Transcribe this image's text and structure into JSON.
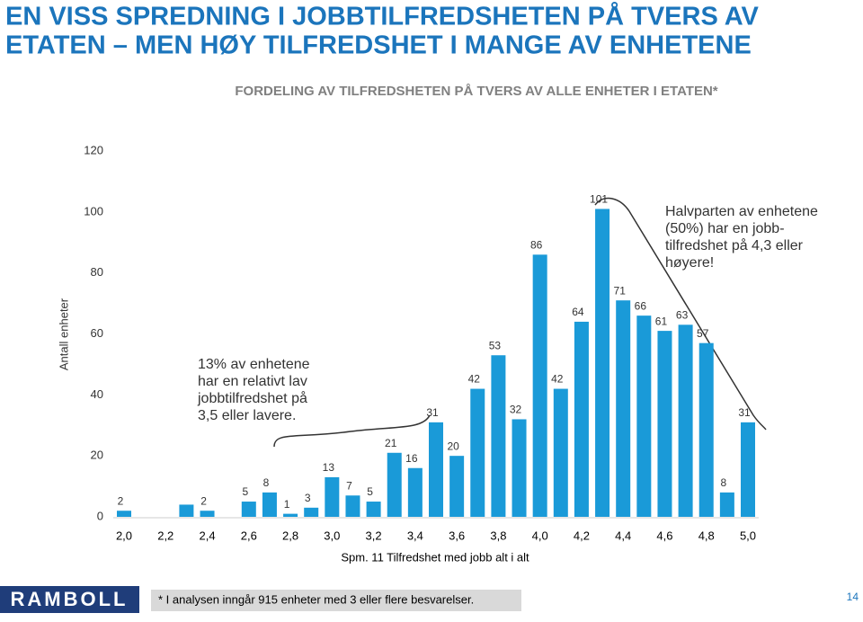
{
  "chart_data": {
    "type": "bar",
    "title_lines": [
      "EN VISS SPREDNING I JOBBTILFREDSHETEN PÅ TVERS AV",
      "ETATEN – MEN HØY TILFREDSHET I MANGE AV ENHETENE"
    ],
    "subtitle": "FORDELING AV TILFREDSHETEN PÅ TVERS AV ALLE ENHETER I ETATEN*",
    "ylabel": "Antall enheter",
    "xlabel": "Spm. 11 Tilfredshet med jobb alt i alt",
    "x": [
      2.0,
      2.1,
      2.2,
      2.3,
      2.4,
      2.5,
      2.6,
      2.7,
      2.8,
      2.9,
      3.0,
      3.1,
      3.2,
      3.3,
      3.4,
      3.5,
      3.6,
      3.7,
      3.8,
      3.9,
      4.0,
      4.1,
      4.2,
      4.3,
      4.4,
      4.5,
      4.6,
      4.7,
      4.8,
      4.9,
      5.0
    ],
    "values": [
      2,
      0,
      0,
      4,
      2,
      0,
      5,
      8,
      1,
      3,
      13,
      7,
      5,
      21,
      16,
      31,
      20,
      42,
      53,
      32,
      86,
      42,
      64,
      101,
      71,
      66,
      61,
      63,
      57,
      8,
      31
    ],
    "value_labels": [
      "2",
      null,
      null,
      null,
      "2",
      null,
      "5",
      "8",
      "1",
      "3",
      "13",
      "7",
      "5",
      "21",
      "16",
      "31",
      "20",
      "42",
      "53",
      "32",
      "86",
      "42",
      "64",
      "101",
      "71",
      "66",
      "61",
      "63",
      "57",
      "8",
      "31"
    ],
    "color": "#1a9ad8",
    "xlim": [
      2.0,
      5.0
    ],
    "xticks": [
      {
        "value": 2.0,
        "label": "2,0"
      },
      {
        "value": 2.2,
        "label": "2,2"
      },
      {
        "value": 2.4,
        "label": "2,4"
      },
      {
        "value": 2.6,
        "label": "2,6"
      },
      {
        "value": 2.8,
        "label": "2,8"
      },
      {
        "value": 3.0,
        "label": "3,0"
      },
      {
        "value": 3.2,
        "label": "3,2"
      },
      {
        "value": 3.4,
        "label": "3,4"
      },
      {
        "value": 3.6,
        "label": "3,6"
      },
      {
        "value": 3.8,
        "label": "3,8"
      },
      {
        "value": 4.0,
        "label": "4,0"
      },
      {
        "value": 4.2,
        "label": "4,2"
      },
      {
        "value": 4.4,
        "label": "4,4"
      },
      {
        "value": 4.6,
        "label": "4,6"
      },
      {
        "value": 4.8,
        "label": "4,8"
      },
      {
        "value": 5.0,
        "label": "5,0"
      }
    ],
    "ylim": [
      0,
      120
    ],
    "yticks": [
      0,
      20,
      40,
      60,
      80,
      100,
      120
    ],
    "grid": false,
    "annotations": [
      {
        "lines": [
          "13% av enhetene",
          "har en relativt lav",
          "jobbtilfredshet på",
          "3,5 eller lavere."
        ]
      },
      {
        "lines": [
          "Halvparten av enhetene",
          "(50%) har en jobb-",
          "tilfredshet på 4,3 eller",
          "høyere!"
        ]
      }
    ]
  },
  "footer": {
    "logo": "RAMBOLL",
    "note": "* I analysen inngår 915 enheter med 3 eller flere besvarelser.",
    "page": "14"
  }
}
